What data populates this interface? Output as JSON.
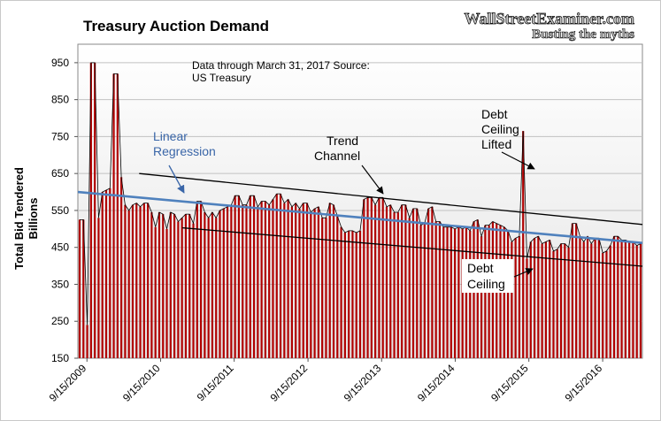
{
  "chart_data": {
    "type": "bar",
    "title": "Treasury Auction Demand",
    "watermark_line1": "WallStreetExaminer.com",
    "watermark_line2": "Busting the myths",
    "note_line1": "Data through March 31, 2017 Source:",
    "note_line2": "US Treasury",
    "ylabel_line1": "Total Bid Tendered",
    "ylabel_line2": "Billions",
    "xlabel": "",
    "ylim": [
      150,
      1000
    ],
    "yticks": [
      150,
      250,
      350,
      450,
      550,
      650,
      750,
      850,
      950
    ],
    "xlim": [
      "2009-08-01",
      "2017-03-31"
    ],
    "xticks": [
      "9/15/2009",
      "9/15/2010",
      "9/15/2011",
      "9/15/2012",
      "9/15/2013",
      "9/15/2014",
      "9/15/2015",
      "9/15/2016"
    ],
    "xtick_dates": [
      "2009-09-15",
      "2010-09-15",
      "2011-09-15",
      "2012-09-15",
      "2013-09-15",
      "2014-09-15",
      "2015-09-15",
      "2016-09-15"
    ],
    "grid": "horizontal",
    "colors": {
      "bar": "#b00000",
      "line": "#000000",
      "regression": "#4f81bd",
      "background_top": "#ffffff",
      "background_bottom": "#e6e6e6"
    },
    "series_start": "2009-08-01",
    "series_end": "2017-03-31",
    "values": [
      525,
      525,
      240,
      950,
      950,
      530,
      600,
      605,
      610,
      920,
      920,
      640,
      565,
      550,
      565,
      570,
      560,
      570,
      570,
      545,
      505,
      545,
      540,
      500,
      545,
      540,
      520,
      530,
      540,
      540,
      515,
      575,
      575,
      545,
      530,
      545,
      530,
      550,
      555,
      560,
      565,
      590,
      590,
      565,
      565,
      590,
      590,
      560,
      575,
      575,
      565,
      580,
      595,
      595,
      570,
      580,
      560,
      570,
      555,
      570,
      570,
      545,
      555,
      560,
      530,
      530,
      570,
      565,
      535,
      505,
      490,
      495,
      495,
      490,
      495,
      580,
      585,
      585,
      565,
      585,
      585,
      560,
      565,
      545,
      545,
      565,
      565,
      530,
      555,
      555,
      510,
      515,
      555,
      560,
      520,
      520,
      505,
      505,
      505,
      500,
      505,
      500,
      505,
      495,
      520,
      525,
      480,
      510,
      510,
      520,
      515,
      510,
      505,
      495,
      465,
      475,
      480,
      765,
      420,
      465,
      475,
      480,
      460,
      465,
      470,
      440,
      445,
      460,
      460,
      450,
      515,
      515,
      480,
      465,
      480,
      460,
      475,
      475,
      435,
      440,
      455,
      480,
      480,
      470,
      470,
      465,
      465,
      455,
      460
    ],
    "regression": {
      "label_line1": "Linear",
      "label_line2": "Regression",
      "start": [
        "2009-08-01",
        600
      ],
      "end": [
        "2017-03-31",
        462
      ]
    },
    "channel_upper": {
      "start": [
        "2010-06-01",
        650
      ],
      "end": [
        "2017-03-31",
        512
      ]
    },
    "channel_lower": {
      "start": [
        "2011-01-01",
        503
      ],
      "end": [
        "2017-03-31",
        399
      ]
    },
    "annotations": {
      "trend_channel_line1": "Trend",
      "trend_channel_line2": "Channel",
      "debt_ceiling_lifted_line1": "Debt",
      "debt_ceiling_lifted_line2": "Ceiling",
      "debt_ceiling_lifted_line3": "Lifted",
      "debt_ceiling_line1": "Debt",
      "debt_ceiling_line2": "Ceiling"
    }
  }
}
